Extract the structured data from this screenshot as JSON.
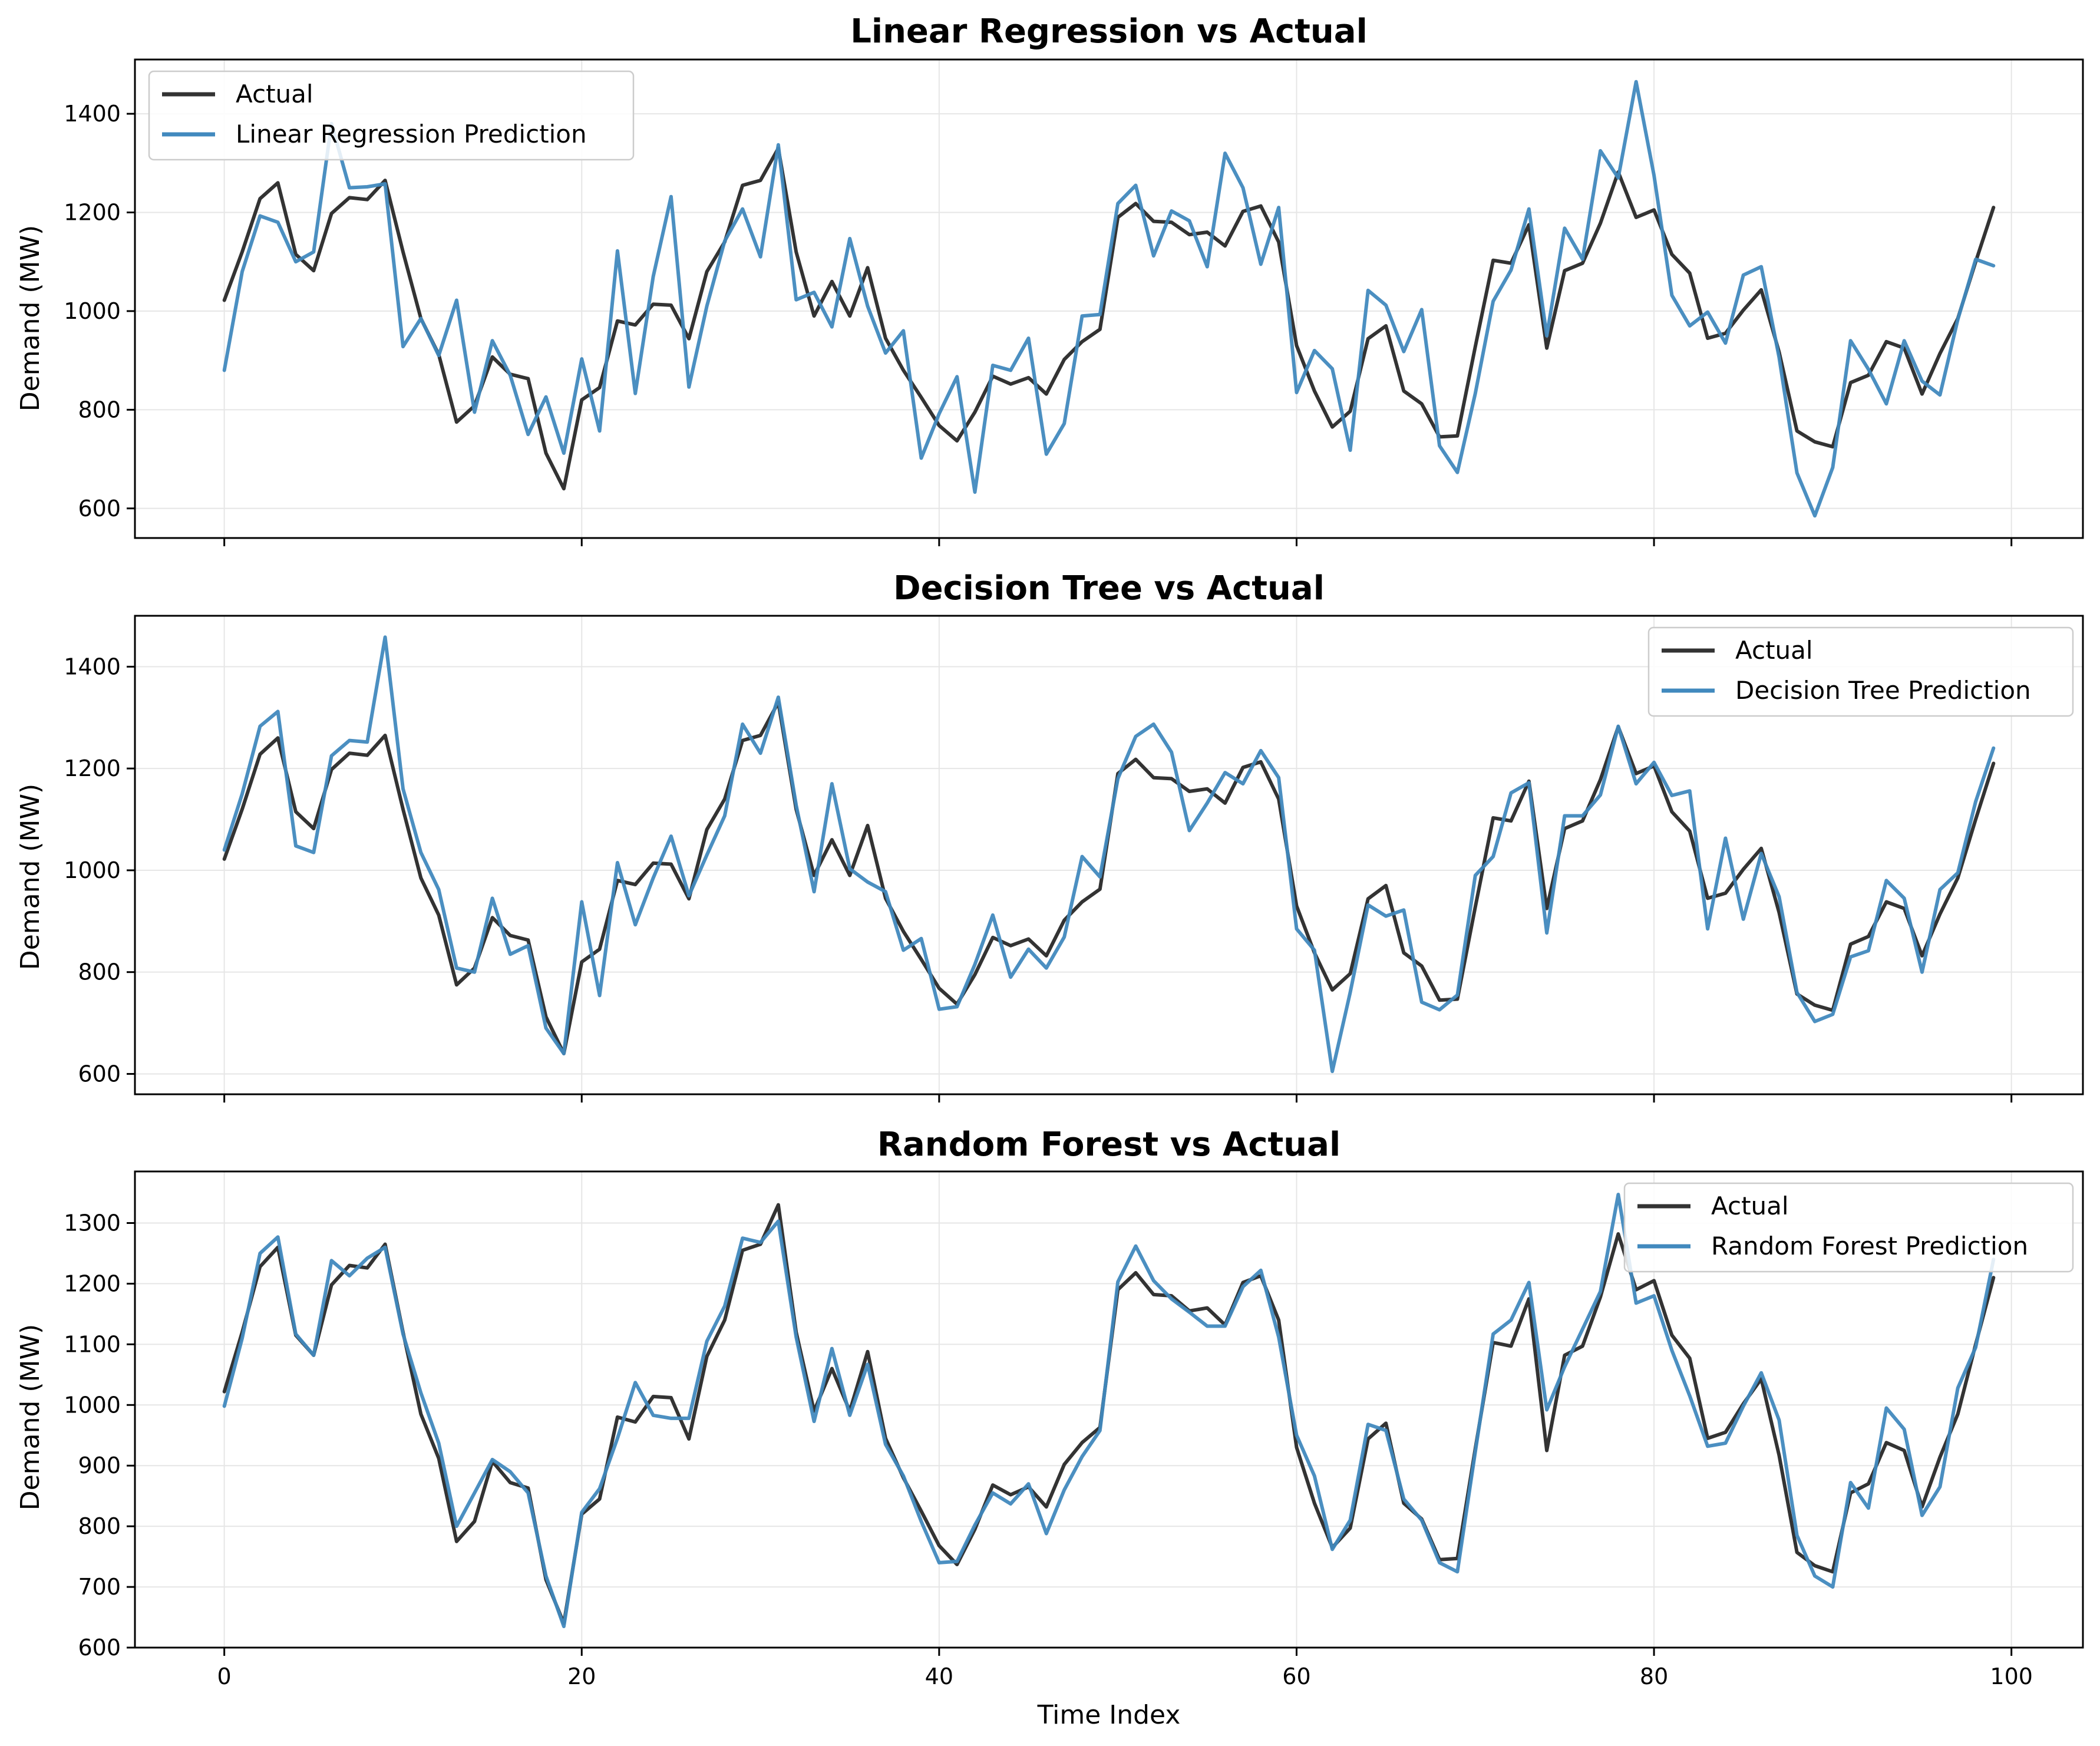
{
  "chart_data": [
    {
      "type": "line",
      "title": "Linear Regression vs Actual",
      "xlabel": "",
      "ylabel": "Demand (MW)",
      "xlim": [
        -5,
        104
      ],
      "ylim": [
        540,
        1510
      ],
      "xticks": [
        0,
        20,
        40,
        60,
        80,
        100
      ],
      "xtick_labels": [
        "",
        "",
        "",
        "",
        "",
        ""
      ],
      "yticks": [
        600,
        800,
        1000,
        1200,
        1400
      ],
      "ytick_labels": [
        "600",
        "800",
        "1000",
        "1200",
        "1400"
      ],
      "grid": true,
      "legend_position": "top-left",
      "series": [
        {
          "name": "Actual",
          "color": "#333333",
          "y": [
            1022,
            1120,
            1228,
            1260,
            1115,
            1082,
            1198,
            1230,
            1226,
            1265,
            1120,
            985,
            912,
            775,
            808,
            907,
            872,
            863,
            712,
            640,
            820,
            845,
            980,
            972,
            1014,
            1012,
            944,
            1080,
            1140,
            1255,
            1265,
            1330,
            1120,
            990,
            1060,
            990,
            1088,
            945,
            880,
            825,
            768,
            737,
            795,
            868,
            852,
            865,
            832,
            902,
            938,
            963,
            1190,
            1218,
            1182,
            1180,
            1155,
            1160,
            1132,
            1202,
            1213,
            1140,
            930,
            838,
            765,
            797,
            944,
            970,
            838,
            812,
            745,
            747,
            928,
            1103,
            1097,
            1175,
            925,
            1082,
            1097,
            1178,
            1282,
            1190,
            1205,
            1115,
            1077,
            945,
            955,
            1002,
            1043,
            917,
            757,
            735,
            725,
            855,
            870,
            938,
            925,
            832,
            914,
            985,
            1100,
            1210
          ]
        },
        {
          "name": "Linear Regression Prediction",
          "color": "#4189BE",
          "y": [
            880,
            1080,
            1193,
            1180,
            1100,
            1120,
            1380,
            1250,
            1252,
            1258,
            928,
            985,
            910,
            1022,
            795,
            940,
            870,
            750,
            826,
            712,
            903,
            757,
            1122,
            833,
            1070,
            1232,
            846,
            1010,
            1142,
            1207,
            1110,
            1337,
            1023,
            1038,
            968,
            1147,
            1010,
            915,
            960,
            702,
            792,
            867,
            633,
            890,
            880,
            945,
            710,
            772,
            990,
            993,
            1218,
            1255,
            1112,
            1203,
            1183,
            1090,
            1320,
            1250,
            1095,
            1210,
            835,
            920,
            883,
            718,
            1042,
            1012,
            918,
            1003,
            727,
            673,
            833,
            1020,
            1083,
            1207,
            950,
            1168,
            1105,
            1325,
            1270,
            1465,
            1275,
            1032,
            970,
            998,
            935,
            1073,
            1090,
            906,
            672,
            585,
            683,
            940,
            882,
            812,
            940,
            858,
            830,
            983,
            1105,
            1092
          ]
        }
      ]
    },
    {
      "type": "line",
      "title": "Decision Tree vs Actual",
      "xlabel": "",
      "ylabel": "Demand (MW)",
      "xlim": [
        -5,
        104
      ],
      "ylim": [
        560,
        1500
      ],
      "xticks": [
        0,
        20,
        40,
        60,
        80,
        100
      ],
      "xtick_labels": [
        "",
        "",
        "",
        "",
        "",
        ""
      ],
      "yticks": [
        600,
        800,
        1000,
        1200,
        1400
      ],
      "ytick_labels": [
        "600",
        "800",
        "1000",
        "1200",
        "1400"
      ],
      "grid": true,
      "legend_position": "top-right",
      "series": [
        {
          "name": "Actual",
          "color": "#333333",
          "y": [
            1022,
            1120,
            1228,
            1260,
            1115,
            1082,
            1198,
            1230,
            1226,
            1265,
            1120,
            985,
            912,
            775,
            808,
            907,
            872,
            863,
            712,
            640,
            820,
            845,
            980,
            972,
            1014,
            1012,
            944,
            1080,
            1140,
            1255,
            1265,
            1330,
            1120,
            990,
            1060,
            990,
            1088,
            945,
            880,
            825,
            768,
            737,
            795,
            868,
            852,
            865,
            832,
            902,
            938,
            963,
            1190,
            1218,
            1182,
            1180,
            1155,
            1160,
            1132,
            1202,
            1213,
            1140,
            930,
            838,
            765,
            797,
            944,
            970,
            838,
            812,
            745,
            747,
            928,
            1103,
            1097,
            1175,
            925,
            1082,
            1097,
            1178,
            1282,
            1190,
            1205,
            1115,
            1077,
            945,
            955,
            1002,
            1043,
            917,
            757,
            735,
            725,
            855,
            870,
            938,
            925,
            832,
            914,
            985,
            1100,
            1210
          ]
        },
        {
          "name": "Decision Tree Prediction",
          "color": "#4189BE",
          "y": [
            1040,
            1150,
            1283,
            1312,
            1048,
            1035,
            1225,
            1255,
            1252,
            1458,
            1160,
            1035,
            962,
            808,
            800,
            945,
            835,
            852,
            690,
            640,
            938,
            754,
            1015,
            893,
            985,
            1067,
            950,
            1030,
            1107,
            1287,
            1230,
            1340,
            1128,
            958,
            1170,
            1003,
            977,
            958,
            843,
            866,
            727,
            732,
            815,
            912,
            790,
            845,
            808,
            869,
            1027,
            987,
            1180,
            1263,
            1287,
            1232,
            1078,
            1132,
            1192,
            1170,
            1235,
            1182,
            885,
            843,
            605,
            760,
            932,
            910,
            922,
            741,
            726,
            755,
            990,
            1027,
            1152,
            1172,
            877,
            1107,
            1107,
            1148,
            1283,
            1170,
            1212,
            1147,
            1156,
            885,
            1063,
            904,
            1033,
            948,
            760,
            703,
            717,
            830,
            842,
            980,
            945,
            800,
            962,
            995,
            1135,
            1240
          ]
        }
      ]
    },
    {
      "type": "line",
      "title": "Random Forest vs Actual",
      "xlabel": "Time Index",
      "ylabel": "Demand (MW)",
      "xlim": [
        -5,
        104
      ],
      "ylim": [
        600,
        1385
      ],
      "xticks": [
        0,
        20,
        40,
        60,
        80,
        100
      ],
      "xtick_labels": [
        "0",
        "20",
        "40",
        "60",
        "80",
        "100"
      ],
      "yticks": [
        600,
        700,
        800,
        900,
        1000,
        1100,
        1200,
        1300
      ],
      "ytick_labels": [
        "600",
        "700",
        "800",
        "900",
        "1000",
        "1100",
        "1200",
        "1300"
      ],
      "grid": true,
      "legend_position": "top-right",
      "series": [
        {
          "name": "Actual",
          "color": "#333333",
          "y": [
            1022,
            1120,
            1228,
            1260,
            1115,
            1082,
            1198,
            1230,
            1226,
            1265,
            1120,
            985,
            912,
            775,
            808,
            907,
            872,
            863,
            712,
            640,
            820,
            845,
            980,
            972,
            1014,
            1012,
            944,
            1080,
            1140,
            1255,
            1265,
            1330,
            1120,
            990,
            1060,
            990,
            1088,
            945,
            880,
            825,
            768,
            737,
            795,
            868,
            852,
            865,
            832,
            902,
            938,
            963,
            1190,
            1218,
            1182,
            1180,
            1155,
            1160,
            1132,
            1202,
            1213,
            1140,
            930,
            838,
            765,
            797,
            944,
            970,
            838,
            812,
            745,
            747,
            928,
            1103,
            1097,
            1175,
            925,
            1082,
            1097,
            1178,
            1282,
            1190,
            1205,
            1115,
            1077,
            945,
            955,
            1002,
            1043,
            917,
            757,
            735,
            725,
            855,
            870,
            938,
            925,
            832,
            914,
            985,
            1100,
            1210
          ]
        },
        {
          "name": "Random Forest Prediction",
          "color": "#4189BE",
          "y": [
            998,
            1110,
            1250,
            1277,
            1117,
            1082,
            1238,
            1213,
            1242,
            1260,
            1117,
            1020,
            937,
            800,
            855,
            910,
            890,
            855,
            718,
            635,
            823,
            862,
            945,
            1037,
            983,
            978,
            978,
            1105,
            1163,
            1275,
            1268,
            1303,
            1112,
            973,
            1093,
            983,
            1067,
            935,
            883,
            808,
            740,
            742,
            802,
            855,
            837,
            870,
            788,
            860,
            915,
            958,
            1203,
            1262,
            1205,
            1175,
            1153,
            1130,
            1130,
            1195,
            1222,
            1112,
            950,
            883,
            762,
            810,
            968,
            958,
            845,
            810,
            740,
            725,
            923,
            1117,
            1140,
            1202,
            992,
            1063,
            1125,
            1187,
            1347,
            1168,
            1180,
            1090,
            1015,
            932,
            937,
            998,
            1053,
            975,
            785,
            718,
            700,
            872,
            830,
            995,
            960,
            818,
            865,
            1028,
            1095,
            1240
          ]
        }
      ]
    }
  ]
}
